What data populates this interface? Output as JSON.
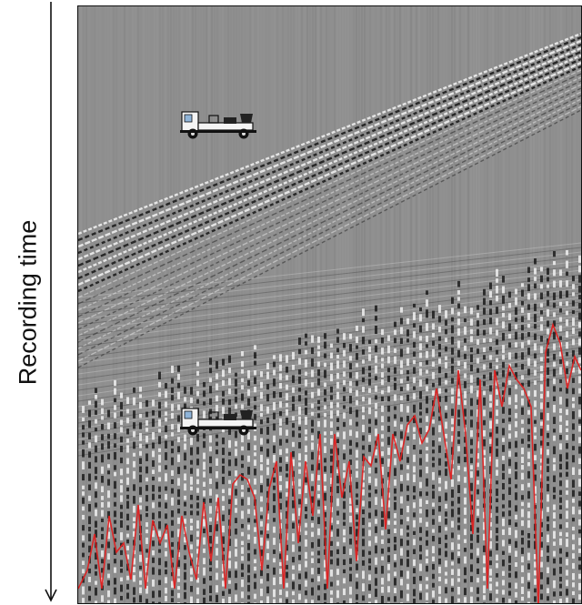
{
  "figure": {
    "vertical_axis_label": "Recording time",
    "icons": [
      {
        "name": "vibroseis-truck-icon"
      },
      {
        "name": "vibroseis-truck-icon"
      }
    ],
    "colors": {
      "background_gray": "#8f8f8f",
      "trace_dark": "#151515",
      "trace_light": "#f5f5f5",
      "picked_line": "#e02020"
    }
  }
}
